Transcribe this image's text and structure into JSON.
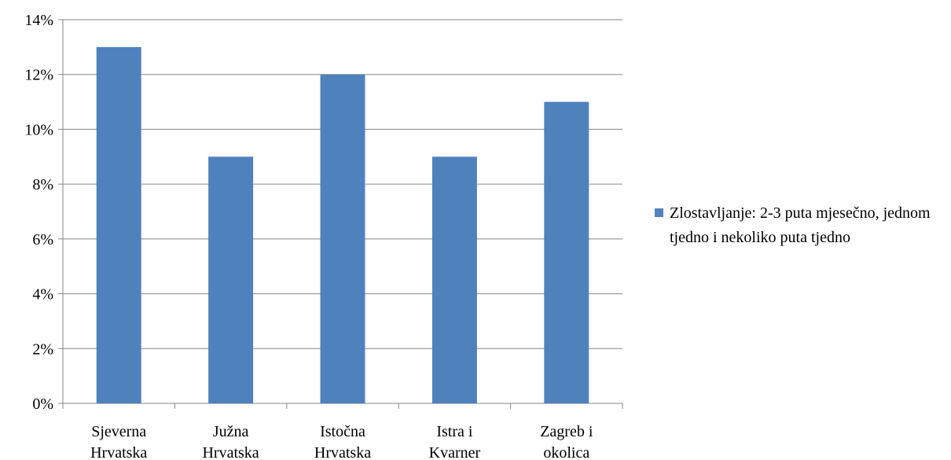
{
  "chart_data": {
    "type": "bar",
    "categories": [
      "Sjeverna Hrvatska",
      "Južna Hrvatska",
      "Istočna Hrvatska",
      "Istra i Kvarner",
      "Zagreb i okolica"
    ],
    "series": [
      {
        "name": "Zlostavljanje: 2-3 puta mjesečno, jednom tjedno i nekoliko puta tjedno",
        "color": "#4f81bd",
        "values": [
          13,
          9,
          12,
          9,
          11
        ]
      }
    ],
    "ylim": [
      0,
      14
    ],
    "yticks": [
      {
        "value": 0,
        "label": "0%"
      },
      {
        "value": 2,
        "label": "2%"
      },
      {
        "value": 4,
        "label": "4%"
      },
      {
        "value": 6,
        "label": "6%"
      },
      {
        "value": 8,
        "label": "8%"
      },
      {
        "value": 10,
        "label": "10%"
      },
      {
        "value": 12,
        "label": "12%"
      },
      {
        "value": 14,
        "label": "14%"
      }
    ],
    "grid": true,
    "legend": "right"
  }
}
